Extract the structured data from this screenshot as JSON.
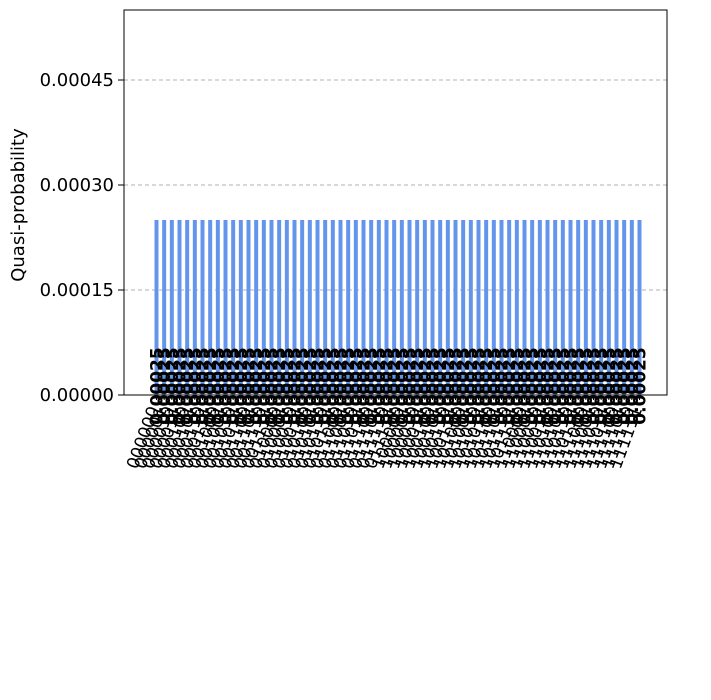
{
  "chart_data": {
    "type": "bar",
    "ylabel": "Quasi-probability",
    "xlabel": "",
    "title": "",
    "ylim": [
      0,
      0.00055
    ],
    "yticks": [
      {
        "value": 0,
        "label": "0.00000"
      },
      {
        "value": 0.00015,
        "label": "0.00015"
      },
      {
        "value": 0.0003,
        "label": "0.00030"
      },
      {
        "value": 0.00045,
        "label": "0.00045"
      }
    ],
    "grid": "horizontal dashed",
    "bar_color": "#6495ed",
    "bar_count": 64,
    "bar_value": 0.00025,
    "value_label": "0.00025",
    "categories": [
      "000000",
      "000001",
      "000010",
      "000011",
      "000100",
      "000101",
      "000110",
      "000111",
      "001000",
      "001001",
      "001010",
      "001011",
      "001100",
      "001101",
      "001110",
      "001111",
      "010000",
      "010001",
      "010010",
      "010011",
      "010100",
      "010101",
      "010110",
      "010111",
      "011000",
      "011001",
      "011010",
      "011011",
      "011100",
      "011101",
      "011110",
      "011111",
      "100000",
      "100001",
      "100010",
      "100011",
      "100100",
      "100101",
      "100110",
      "100111",
      "101000",
      "101001",
      "101010",
      "101011",
      "101100",
      "101101",
      "101110",
      "101111",
      "110000",
      "110001",
      "110010",
      "110011",
      "110100",
      "110101",
      "110110",
      "110111",
      "111000",
      "111001",
      "111010",
      "111011",
      "111100",
      "111101",
      "111110",
      "111111"
    ]
  }
}
